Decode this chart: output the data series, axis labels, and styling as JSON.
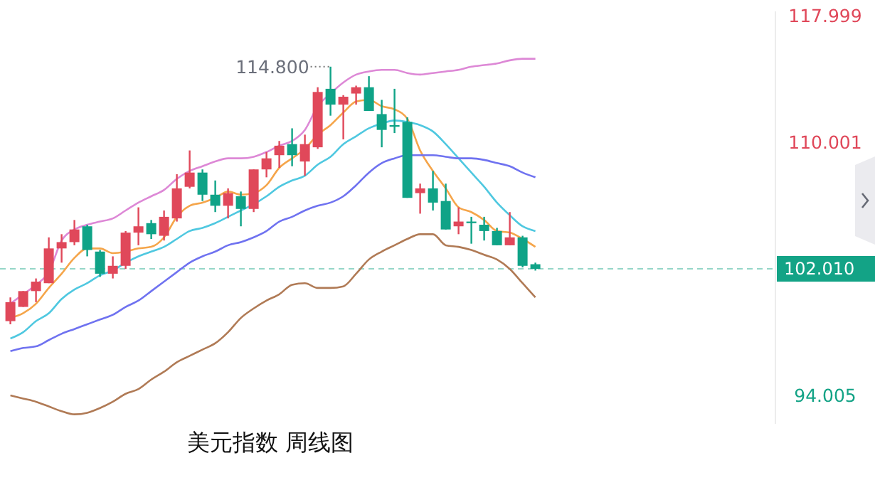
{
  "chart_data": {
    "type": "candlestick",
    "title": "美元指数 周线图",
    "categories": [
      null,
      null,
      null,
      null,
      null,
      null,
      null,
      null,
      null,
      null,
      null,
      null,
      null,
      null,
      null,
      null,
      null,
      null,
      null,
      null,
      null,
      null,
      null,
      null,
      null,
      null,
      null,
      null,
      null,
      null,
      null,
      null,
      null,
      null,
      null,
      null,
      null,
      null,
      null,
      null,
      null,
      null
    ],
    "ohlc": [
      [
        98.7,
        100.2,
        98.5,
        99.9
      ],
      [
        99.6,
        100.6,
        99.6,
        100.6
      ],
      [
        100.6,
        101.4,
        99.9,
        101.2
      ],
      [
        101.1,
        104.0,
        101.1,
        103.3
      ],
      [
        103.3,
        104.2,
        102.4,
        103.7
      ],
      [
        103.7,
        105.1,
        103.5,
        104.5
      ],
      [
        104.7,
        104.8,
        102.8,
        103.2
      ],
      [
        103.1,
        103.2,
        101.5,
        101.7
      ],
      [
        101.7,
        102.8,
        101.4,
        102.2
      ],
      [
        102.2,
        104.4,
        102.0,
        104.3
      ],
      [
        104.3,
        105.9,
        103.5,
        104.7
      ],
      [
        104.9,
        105.1,
        103.9,
        104.2
      ],
      [
        104.1,
        105.7,
        103.8,
        105.3
      ],
      [
        105.2,
        108.0,
        105.0,
        107.1
      ],
      [
        107.2,
        109.5,
        107.1,
        108.1
      ],
      [
        108.1,
        108.3,
        106.3,
        106.7
      ],
      [
        106.7,
        107.6,
        105.6,
        106.0
      ],
      [
        106.0,
        107.1,
        105.2,
        106.8
      ],
      [
        106.6,
        106.9,
        104.7,
        105.8
      ],
      [
        105.8,
        108.3,
        105.6,
        108.3
      ],
      [
        108.3,
        109.4,
        107.8,
        109.0
      ],
      [
        109.2,
        110.1,
        108.4,
        109.8
      ],
      [
        109.9,
        110.9,
        108.5,
        109.2
      ],
      [
        108.8,
        110.5,
        107.9,
        109.9
      ],
      [
        109.7,
        113.5,
        109.6,
        113.2
      ],
      [
        113.4,
        114.8,
        111.7,
        112.4
      ],
      [
        112.4,
        113.0,
        110.2,
        112.9
      ],
      [
        113.1,
        113.6,
        112.4,
        113.5
      ],
      [
        113.5,
        114.2,
        112.0,
        112.0
      ],
      [
        111.8,
        112.7,
        109.7,
        110.8
      ],
      [
        111.1,
        113.4,
        110.6,
        111.0
      ],
      [
        111.3,
        111.6,
        106.5,
        106.5
      ],
      [
        106.8,
        107.4,
        105.5,
        107.1
      ],
      [
        107.1,
        108.2,
        105.7,
        106.2
      ],
      [
        106.3,
        107.4,
        104.5,
        104.5
      ],
      [
        104.7,
        105.9,
        104.2,
        105.0
      ],
      [
        105.0,
        105.3,
        103.6,
        104.9
      ],
      [
        104.8,
        105.3,
        103.8,
        104.4
      ],
      [
        104.4,
        104.6,
        103.5,
        103.5
      ],
      [
        103.5,
        105.6,
        103.5,
        104.0
      ],
      [
        104.0,
        104.1,
        102.1,
        102.2
      ],
      [
        102.3,
        102.4,
        101.9,
        102.01
      ]
    ],
    "colors": [
      "#e0485a",
      "#e0485a",
      "#e0485a",
      "#e0485a",
      "#e0485a",
      "#e0485a",
      "#0fa387",
      "#0fa387",
      "#e0485a",
      "#e0485a",
      "#e0485a",
      "#0fa387",
      "#e0485a",
      "#e0485a",
      "#e0485a",
      "#0fa387",
      "#0fa387",
      "#e0485a",
      "#0fa387",
      "#e0485a",
      "#e0485a",
      "#e0485a",
      "#0fa387",
      "#e0485a",
      "#e0485a",
      "#0fa387",
      "#e0485a",
      "#e0485a",
      "#0fa387",
      "#0fa387",
      "#0fa387",
      "#0fa387",
      "#e0485a",
      "#0fa387",
      "#0fa387",
      "#e0485a",
      "#0fa387",
      "#0fa387",
      "#0fa387",
      "#e0485a",
      "#0fa387",
      "#0fa387"
    ],
    "series": [
      {
        "type": "line",
        "color": "#dd88d6",
        "values": [
          99.8,
          100.4,
          101.0,
          101.8,
          103.8,
          104.5,
          104.8,
          105.0,
          105.2,
          105.7,
          106.2,
          106.6,
          107.0,
          107.7,
          108.2,
          108.5,
          108.8,
          109.0,
          109.0,
          109.1,
          109.4,
          109.8,
          110.1,
          110.8,
          112.3,
          113.1,
          113.8,
          114.3,
          114.5,
          114.6,
          114.6,
          114.4,
          114.3,
          114.4,
          114.5,
          114.6,
          114.8,
          114.9,
          115.0,
          115.2,
          115.3,
          115.3
        ]
      },
      {
        "type": "line",
        "color": "#f5a54a",
        "values": [
          98.9,
          99.2,
          99.8,
          100.8,
          101.7,
          102.7,
          103.3,
          103.3,
          103.0,
          103.1,
          103.3,
          103.4,
          104.0,
          105.3,
          106.0,
          106.2,
          106.5,
          106.9,
          106.7,
          106.8,
          107.3,
          108.4,
          109.0,
          109.6,
          110.5,
          111.1,
          111.9,
          112.6,
          112.7,
          112.3,
          112.1,
          111.5,
          109.5,
          108.2,
          107.1,
          105.9,
          105.6,
          105.1,
          104.4,
          104.3,
          103.9,
          103.4
        ]
      },
      {
        "type": "line",
        "color": "#4fc8e0",
        "values": [
          97.6,
          98.0,
          98.7,
          99.2,
          100.1,
          100.7,
          101.1,
          101.6,
          101.9,
          102.4,
          102.8,
          103.1,
          103.4,
          103.9,
          104.4,
          104.6,
          104.9,
          105.3,
          105.7,
          106.1,
          106.6,
          107.2,
          107.6,
          107.9,
          108.6,
          109.1,
          109.9,
          110.4,
          110.9,
          111.2,
          111.4,
          111.3,
          111.1,
          110.7,
          109.9,
          109.0,
          108.1,
          107.2,
          106.2,
          105.4,
          104.7,
          104.4
        ]
      },
      {
        "type": "line",
        "color": "#6f72f0",
        "values": [
          96.8,
          97.0,
          97.1,
          97.5,
          97.9,
          98.2,
          98.5,
          98.8,
          99.1,
          99.6,
          100.0,
          100.6,
          101.2,
          101.8,
          102.4,
          102.8,
          103.1,
          103.5,
          103.7,
          104.0,
          104.4,
          105.0,
          105.3,
          105.7,
          106.0,
          106.2,
          106.6,
          107.3,
          108.1,
          108.7,
          109.0,
          109.2,
          109.2,
          109.2,
          109.1,
          109.0,
          109.0,
          108.9,
          108.7,
          108.5,
          108.1,
          107.8
        ]
      },
      {
        "type": "line",
        "color": "#b07a55",
        "values": [
          94.0,
          93.8,
          93.6,
          93.3,
          93.0,
          92.8,
          92.9,
          93.2,
          93.6,
          94.1,
          94.4,
          95.0,
          95.5,
          96.1,
          96.5,
          96.9,
          97.3,
          98.0,
          98.9,
          99.5,
          100.0,
          100.4,
          101.0,
          101.1,
          100.8,
          100.8,
          100.9,
          101.7,
          102.6,
          103.1,
          103.5,
          103.9,
          104.2,
          104.2,
          103.5,
          103.4,
          103.2,
          102.9,
          102.6,
          102.0,
          101.1,
          100.2
        ]
      }
    ],
    "ylim": [
      92.2,
      118.3
    ],
    "yticks": [
      117.999,
      110.001,
      94.005
    ],
    "tick_labels": "y",
    "ref_lines": [
      {
        "axis": "y",
        "value": 102.01,
        "label": "102.010",
        "color": "#13a386",
        "line_style": "dashed"
      }
    ],
    "annotations": [
      "114.800"
    ]
  }
}
